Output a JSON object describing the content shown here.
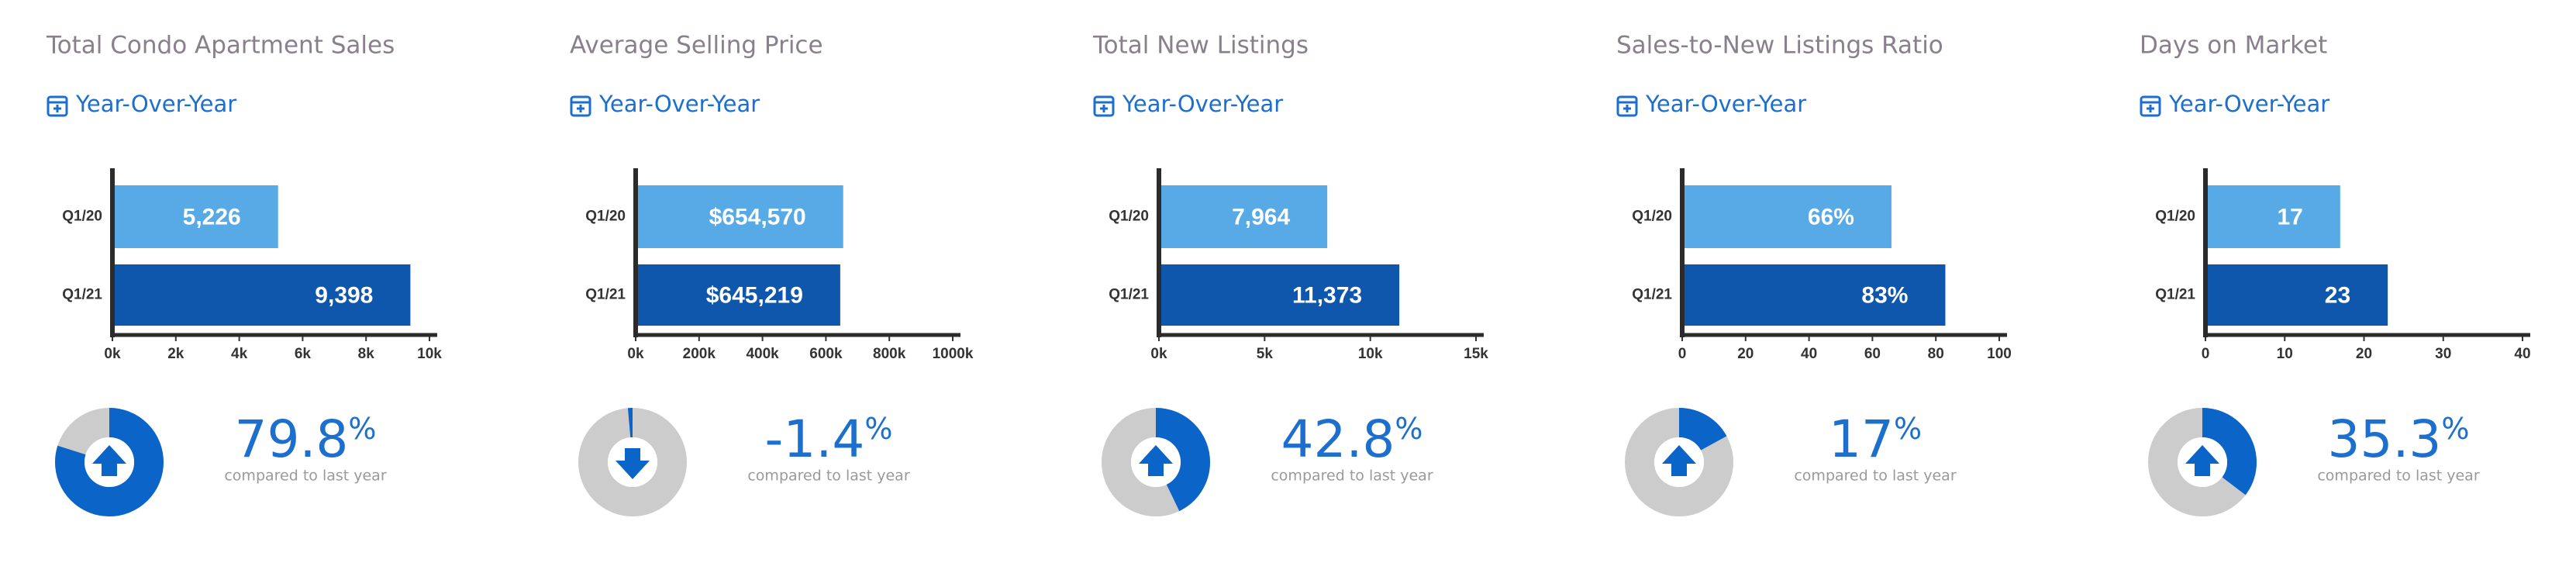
{
  "chart_data": [
    {
      "type": "bar",
      "title": "Total Condo Apartment Sales",
      "subtitle": "Year-Over-Year",
      "categories": [
        "Q1/20",
        "Q1/21"
      ],
      "values": [
        5226,
        9398
      ],
      "value_labels": [
        "5,226",
        "9,398"
      ],
      "colors": [
        "#58aae6",
        "#0f57ad"
      ],
      "xlim": [
        0,
        10000
      ],
      "xticks": [
        {
          "value": 0,
          "label": "0k"
        },
        {
          "value": 2000,
          "label": "2k"
        },
        {
          "value": 4000,
          "label": "4k"
        },
        {
          "value": 6000,
          "label": "6k"
        },
        {
          "value": 8000,
          "label": "8k"
        },
        {
          "value": 10000,
          "label": "10k"
        }
      ],
      "change": {
        "type": "donut",
        "value": 79.8,
        "unit": "%",
        "caption": "compared to last year",
        "color": "#0b64c8",
        "track_color": "#cccccc"
      }
    },
    {
      "type": "bar",
      "title": "Average Selling Price",
      "subtitle": "Year-Over-Year",
      "categories": [
        "Q1/20",
        "Q1/21"
      ],
      "values": [
        654570,
        645219
      ],
      "value_labels": [
        "$654,570",
        "$645,219"
      ],
      "colors": [
        "#58aae6",
        "#0f57ad"
      ],
      "xlim": [
        0,
        1000000
      ],
      "xticks": [
        {
          "value": 0,
          "label": "0k"
        },
        {
          "value": 200000,
          "label": "200k"
        },
        {
          "value": 400000,
          "label": "400k"
        },
        {
          "value": 600000,
          "label": "600k"
        },
        {
          "value": 800000,
          "label": "800k"
        },
        {
          "value": 1000000,
          "label": "1000k"
        }
      ],
      "change": {
        "type": "donut",
        "value": -1.4,
        "unit": "%",
        "caption": "compared to last year",
        "color": "#0b64c8",
        "track_color": "#cccccc"
      }
    },
    {
      "type": "bar",
      "title": "Total New Listings",
      "subtitle": "Year-Over-Year",
      "categories": [
        "Q1/20",
        "Q1/21"
      ],
      "values": [
        7964,
        11373
      ],
      "value_labels": [
        "7,964",
        "11,373"
      ],
      "colors": [
        "#58aae6",
        "#0f57ad"
      ],
      "xlim": [
        0,
        15000
      ],
      "xticks": [
        {
          "value": 0,
          "label": "0k"
        },
        {
          "value": 5000,
          "label": "5k"
        },
        {
          "value": 10000,
          "label": "10k"
        },
        {
          "value": 15000,
          "label": "15k"
        }
      ],
      "change": {
        "type": "donut",
        "value": 42.8,
        "unit": "%",
        "caption": "compared to last year",
        "color": "#0b64c8",
        "track_color": "#cccccc"
      }
    },
    {
      "type": "bar",
      "title": "Sales-to-New Listings Ratio",
      "subtitle": "Year-Over-Year",
      "categories": [
        "Q1/20",
        "Q1/21"
      ],
      "values": [
        66,
        83
      ],
      "value_labels": [
        "66%",
        "83%"
      ],
      "colors": [
        "#58aae6",
        "#0f57ad"
      ],
      "xlim": [
        0,
        100
      ],
      "xticks": [
        0,
        20,
        40,
        60,
        80,
        100
      ],
      "change": {
        "type": "donut",
        "value": 17,
        "unit": "%",
        "caption": "compared to last year",
        "color": "#0b64c8",
        "track_color": "#cccccc"
      }
    },
    {
      "type": "bar",
      "title": "Days on Market",
      "subtitle": "Year-Over-Year",
      "categories": [
        "Q1/20",
        "Q1/21"
      ],
      "values": [
        17,
        23
      ],
      "colors": [
        "#58aae6",
        "#0f57ad"
      ],
      "xlim": [
        0,
        40
      ],
      "xticks": [
        0,
        10,
        20,
        30,
        40
      ],
      "change": {
        "type": "donut",
        "value": 35.3,
        "unit": "%",
        "caption": "compared to last year",
        "color": "#0b64c8",
        "track_color": "#cccccc"
      }
    }
  ]
}
